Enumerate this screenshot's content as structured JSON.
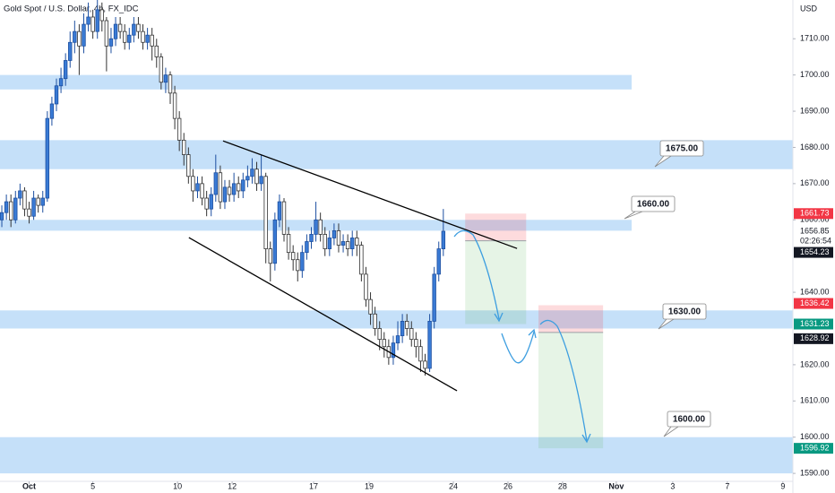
{
  "chart_data": {
    "type": "candlestick",
    "title": "Gold Spot / U.S. Dollar, 4h, FX_IDC",
    "currency": "USD",
    "ylim": [
      1587.8,
      1720.7
    ],
    "yticks": [
      {
        "value": 1590,
        "label": "1590.00"
      },
      {
        "value": 1600,
        "label": "1600.00"
      },
      {
        "value": 1610,
        "label": "1610.00"
      },
      {
        "value": 1620,
        "label": "1620.00"
      },
      {
        "value": 1640,
        "label": "1640.00"
      },
      {
        "value": 1660,
        "label": "1660.00"
      },
      {
        "value": 1670,
        "label": "1670.00"
      },
      {
        "value": 1680,
        "label": "1680.00"
      },
      {
        "value": 1690,
        "label": "1690.00"
      },
      {
        "value": 1700,
        "label": "1700.00"
      },
      {
        "value": 1710,
        "label": "1710.00"
      }
    ],
    "xlim": [
      -0.4,
      173.8
    ],
    "xticks": [
      {
        "value": 6,
        "label": "Oct"
      },
      {
        "value": 20,
        "label": "5"
      },
      {
        "value": 38.6,
        "label": "10"
      },
      {
        "value": 50.6,
        "label": "12"
      },
      {
        "value": 68.5,
        "label": "17"
      },
      {
        "value": 80.7,
        "label": "19"
      },
      {
        "value": 99.2,
        "label": "24"
      },
      {
        "value": 111.2,
        "label": "26"
      },
      {
        "value": 123.2,
        "label": "28"
      },
      {
        "value": 135,
        "label": "Nov"
      },
      {
        "value": 147.4,
        "label": "3"
      },
      {
        "value": 159.4,
        "label": "7"
      },
      {
        "value": 171.6,
        "label": "9"
      }
    ],
    "up_color": "#3a7bd5",
    "down_color": "#ffffff",
    "x": [
      0,
      1,
      2,
      3,
      4,
      5,
      6,
      7,
      8,
      9,
      10,
      11,
      12,
      13,
      14,
      15,
      16,
      17,
      18,
      19,
      20,
      21,
      22,
      23,
      24,
      25,
      26,
      27,
      28,
      29,
      30,
      31,
      32,
      33,
      34,
      35,
      36,
      37,
      38,
      39,
      40,
      41,
      42,
      43,
      44,
      45,
      46,
      47,
      48,
      49,
      50,
      51,
      52,
      53,
      54,
      55,
      56,
      57,
      58,
      59,
      60,
      61,
      62,
      63,
      64,
      65,
      66,
      67,
      68,
      69,
      70,
      71,
      72,
      73,
      74,
      75,
      76,
      77,
      78,
      79,
      80,
      81,
      82,
      83,
      84,
      85,
      86,
      87,
      88,
      89,
      90,
      91,
      92,
      93,
      94,
      95,
      96,
      97
    ],
    "open": [
      1660,
      1662,
      1665,
      1660,
      1666,
      1668,
      1663,
      1661,
      1666,
      1664,
      1666,
      1688,
      1692,
      1697,
      1699,
      1704,
      1709,
      1712,
      1708,
      1714,
      1716,
      1712,
      1718,
      1715,
      1708,
      1710,
      1714,
      1712,
      1709,
      1711,
      1714,
      1712,
      1709,
      1711,
      1708,
      1705,
      1698,
      1700,
      1695,
      1688,
      1682,
      1678,
      1672,
      1668,
      1670,
      1666,
      1663,
      1667,
      1673,
      1665,
      1669,
      1667,
      1670,
      1668,
      1671,
      1672,
      1674,
      1670,
      1672,
      1652,
      1648,
      1660,
      1665,
      1656,
      1651,
      1649,
      1646,
      1651,
      1654,
      1656,
      1660,
      1656,
      1652,
      1655,
      1657,
      1653,
      1654,
      1652,
      1655,
      1653,
      1645,
      1638,
      1634,
      1630,
      1627,
      1625,
      1622,
      1626,
      1628,
      1632,
      1630,
      1627,
      1625,
      1621,
      1619,
      1632,
      1645,
      1652
    ],
    "high": [
      1664,
      1667,
      1667,
      1668,
      1670,
      1669,
      1665,
      1668,
      1667,
      1668,
      1690,
      1694,
      1699,
      1702,
      1706,
      1712,
      1715,
      1714,
      1717,
      1720,
      1718,
      1721,
      1720,
      1716,
      1713,
      1716,
      1716,
      1714,
      1713,
      1716,
      1716,
      1714,
      1713,
      1713,
      1710,
      1706,
      1702,
      1701,
      1697,
      1690,
      1684,
      1680,
      1674,
      1672,
      1672,
      1668,
      1669,
      1678,
      1675,
      1671,
      1671,
      1673,
      1672,
      1673,
      1675,
      1677,
      1676,
      1678,
      1673,
      1654,
      1662,
      1667,
      1666,
      1658,
      1653,
      1651,
      1653,
      1656,
      1658,
      1665,
      1662,
      1658,
      1657,
      1659,
      1659,
      1656,
      1656,
      1657,
      1657,
      1654,
      1647,
      1640,
      1636,
      1632,
      1629,
      1627,
      1628,
      1632,
      1634,
      1634,
      1632,
      1629,
      1627,
      1623,
      1634,
      1647,
      1654,
      1663
    ],
    "low": [
      1658,
      1660,
      1658,
      1659,
      1664,
      1661,
      1659,
      1660,
      1662,
      1662,
      1665,
      1686,
      1690,
      1695,
      1697,
      1702,
      1706,
      1700,
      1706,
      1712,
      1710,
      1710,
      1712,
      1701,
      1706,
      1708,
      1710,
      1707,
      1707,
      1709,
      1710,
      1707,
      1707,
      1704,
      1702,
      1696,
      1695,
      1692,
      1685,
      1679,
      1675,
      1670,
      1665,
      1666,
      1664,
      1661,
      1661,
      1665,
      1663,
      1663,
      1665,
      1665,
      1666,
      1666,
      1669,
      1670,
      1668,
      1668,
      1648,
      1643,
      1646,
      1658,
      1654,
      1649,
      1646,
      1643,
      1644,
      1649,
      1652,
      1654,
      1654,
      1650,
      1650,
      1653,
      1651,
      1651,
      1650,
      1650,
      1650,
      1643,
      1636,
      1631,
      1628,
      1624,
      1622,
      1620,
      1620,
      1624,
      1626,
      1628,
      1625,
      1622,
      1618,
      1617,
      1618,
      1630,
      1643,
      1650
    ],
    "close": [
      1662,
      1665,
      1660,
      1666,
      1668,
      1663,
      1661,
      1666,
      1664,
      1666,
      1688,
      1692,
      1697,
      1699,
      1704,
      1709,
      1712,
      1708,
      1714,
      1716,
      1712,
      1718,
      1715,
      1708,
      1710,
      1714,
      1712,
      1709,
      1711,
      1714,
      1712,
      1709,
      1711,
      1708,
      1705,
      1698,
      1700,
      1695,
      1688,
      1682,
      1678,
      1672,
      1668,
      1670,
      1666,
      1663,
      1667,
      1673,
      1665,
      1669,
      1667,
      1670,
      1668,
      1671,
      1672,
      1674,
      1670,
      1672,
      1652,
      1648,
      1660,
      1665,
      1656,
      1651,
      1649,
      1646,
      1651,
      1654,
      1656,
      1660,
      1656,
      1652,
      1655,
      1657,
      1653,
      1654,
      1652,
      1655,
      1653,
      1645,
      1638,
      1634,
      1630,
      1627,
      1625,
      1622,
      1626,
      1628,
      1632,
      1630,
      1627,
      1625,
      1621,
      1619,
      1632,
      1645,
      1652,
      1656.85
    ],
    "countdown": "02:26:54",
    "zones": [
      {
        "top": 1700,
        "bottom": 1696
      },
      {
        "top": 1682,
        "bottom": 1674
      },
      {
        "top": 1660,
        "bottom": 1657
      },
      {
        "top": 1635,
        "bottom": 1630
      },
      {
        "top": 1600,
        "bottom": 1590
      }
    ],
    "trendlines": [
      {
        "x": [
          48.6,
          113.2
        ],
        "y": [
          1681.8,
          1652.1
        ]
      },
      {
        "x": [
          41.1,
          100
        ],
        "y": [
          1655.1,
          1612.8
        ]
      }
    ],
    "positions": [
      {
        "x": [
          101.8,
          115.2
        ],
        "entry": 1654.23,
        "stop": 1661.73,
        "target": 1631.23
      },
      {
        "x": [
          117.9,
          132.1
        ],
        "entry": 1628.92,
        "stop": 1636.42,
        "target": 1596.92
      }
    ],
    "callouts": [
      "1675.00",
      "1660.00",
      "1630.00",
      "1600.00"
    ]
  }
}
